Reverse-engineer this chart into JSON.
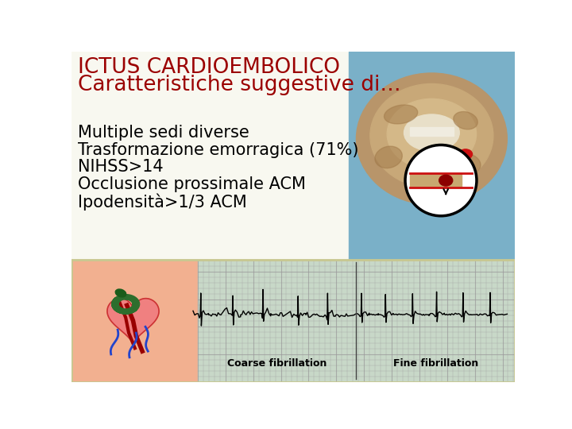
{
  "title_line1": "ICTUS CARDIOEMBOLICO",
  "title_line2": "Caratteristiche suggestive di…",
  "title_color": "#9b0000",
  "title_fontsize": 19,
  "body_lines": [
    "Multiple sedi diverse",
    "Trasformazione emorragica (71%)",
    "NIHSS>14",
    "Occlusione prossimale ACM",
    "Ipodensità>1/3 ACM"
  ],
  "body_color": "#000000",
  "body_fontsize": 15,
  "bg_color": "#ffffff",
  "slide_bg": "#f8f8f0",
  "brain_bg": "#7ab0c8",
  "bottom_bg": "#f5d0b0",
  "ecg_bg": "#c8d8c8",
  "ecg_grid_color": "#aaaaaa",
  "label_fontsize": 9
}
